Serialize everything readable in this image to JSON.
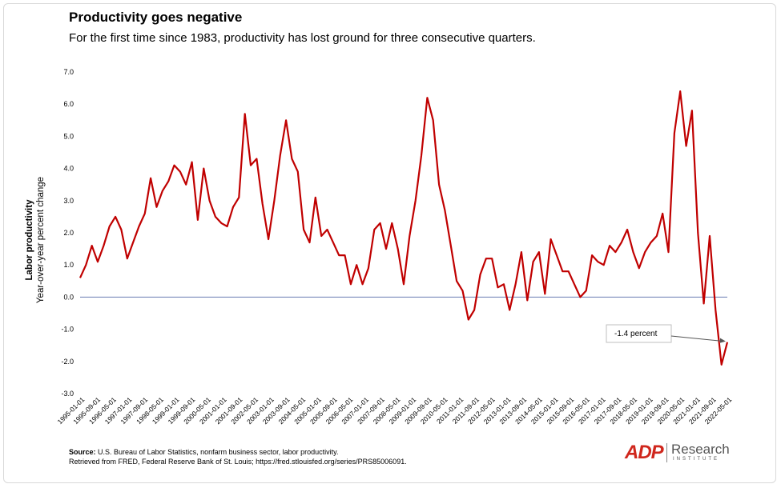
{
  "title": "Productivity goes negative",
  "subtitle": "For the first time since 1983, productivity has lost ground for three consecutive quarters.",
  "source": {
    "label": "Source:",
    "line1": "U.S. Bureau of Labor Statistics, nonfarm business sector, labor productivity.",
    "line2": "Retrieved from FRED, Federal Reserve Bank of St. Louis; https://fred.stlouisfed.org/series/PRS85006091."
  },
  "logo": {
    "mark": "ADP",
    "word": "Research",
    "sub": "INSTITUTE"
  },
  "colors": {
    "line": "#c00000",
    "zero_line": "#6b7db3",
    "grid": "#f0f0f0"
  },
  "chart_data": {
    "type": "line",
    "title": "Productivity goes negative",
    "ylabel_line1": "Labor productivity",
    "ylabel_line2": "Year-over-year percent change",
    "ylim": [
      -3.0,
      7.0
    ],
    "y_ticks": [
      "7.0",
      "6.0",
      "5.0",
      "4.0",
      "3.0",
      "2.0",
      "1.0",
      "0.0",
      "-1.0",
      "-2.0",
      "-3.0"
    ],
    "x_tick_labels": [
      "1995-01-01",
      "1995-09-01",
      "1996-05-01",
      "1997-01-01",
      "1997-09-01",
      "1998-05-01",
      "1999-01-01",
      "1999-09-01",
      "2000-05-01",
      "2001-01-01",
      "2001-09-01",
      "2002-05-01",
      "2003-01-01",
      "2003-09-01",
      "2004-05-01",
      "2005-01-01",
      "2005-09-01",
      "2006-05-01",
      "2007-01-01",
      "2007-09-01",
      "2008-05-01",
      "2009-01-01",
      "2009-09-01",
      "2010-05-01",
      "2011-01-01",
      "2011-09-01",
      "2012-05-01",
      "2013-01-01",
      "2013-09-01",
      "2014-05-01",
      "2015-01-01",
      "2015-09-01",
      "2016-05-01",
      "2017-01-01",
      "2017-09-01",
      "2018-05-01",
      "2019-01-01",
      "2019-09-01",
      "2020-05-01",
      "2021-01-01",
      "2021-09-01",
      "2022-05-01"
    ],
    "grid": false,
    "annotation": {
      "text": "-1.4 percent",
      "target_value": -1.4
    },
    "series": [
      {
        "values": [
          0.6,
          1.0,
          1.6,
          1.1,
          1.6,
          2.2,
          2.5,
          2.1,
          1.2,
          1.7,
          2.2,
          2.6,
          3.7,
          2.8,
          3.3,
          3.6,
          4.1,
          3.9,
          3.5,
          4.2,
          2.4,
          4.0,
          3.0,
          2.5,
          2.3,
          2.2,
          2.8,
          3.1,
          5.7,
          4.1,
          4.3,
          2.9,
          1.8,
          3.0,
          4.4,
          5.5,
          4.3,
          3.9,
          2.1,
          1.7,
          3.1,
          1.9,
          2.1,
          1.7,
          1.3,
          1.3,
          0.4,
          1.0,
          0.4,
          0.9,
          2.1,
          2.3,
          1.5,
          2.3,
          1.5,
          0.4,
          1.9,
          3.0,
          4.4,
          6.2,
          5.5,
          3.5,
          2.7,
          1.6,
          0.5,
          0.2,
          -0.7,
          -0.4,
          0.7,
          1.2,
          1.2,
          0.3,
          0.4,
          -0.4,
          0.4,
          1.4,
          -0.1,
          1.1,
          1.4,
          0.1,
          1.8,
          1.3,
          0.8,
          0.8,
          0.4,
          0.0,
          0.2,
          1.3,
          1.1,
          1.0,
          1.6,
          1.4,
          1.7,
          2.1,
          1.4,
          0.9,
          1.4,
          1.7,
          1.9,
          2.6,
          1.4,
          5.1,
          6.4,
          4.7,
          5.8,
          2.0,
          -0.2,
          1.9,
          -0.4,
          -2.1,
          -1.4
        ]
      }
    ]
  }
}
